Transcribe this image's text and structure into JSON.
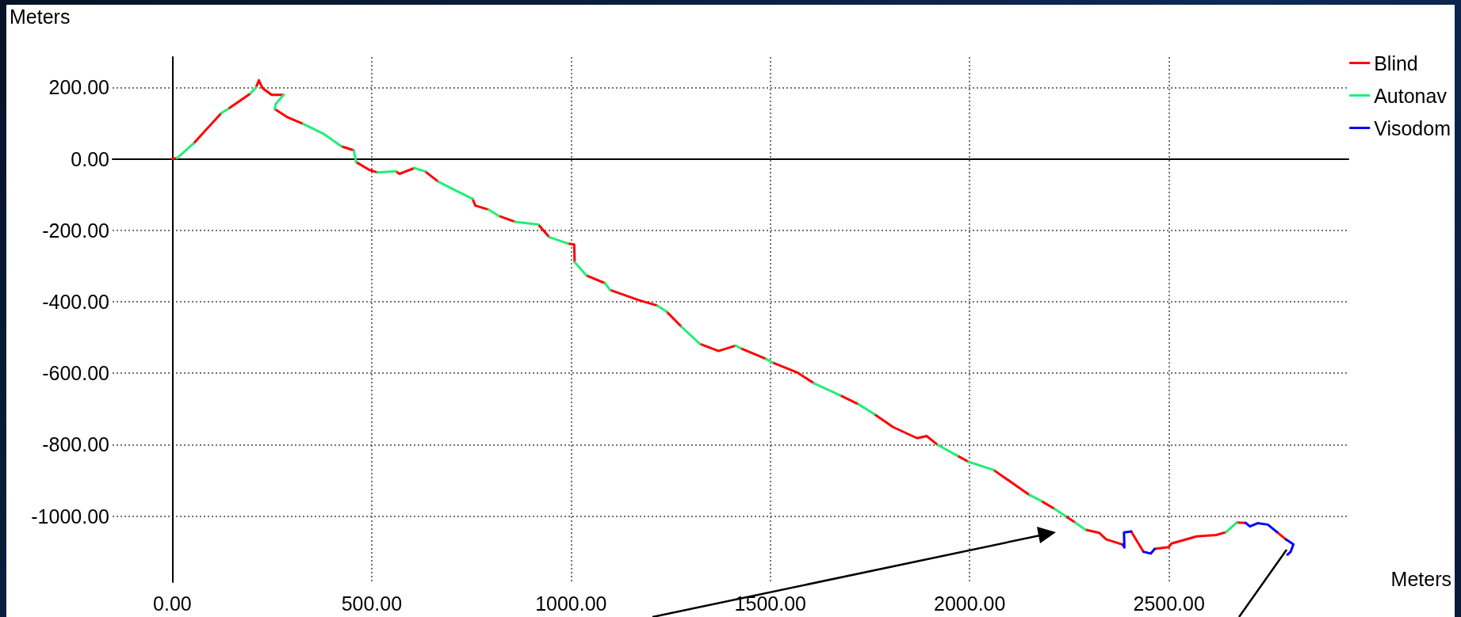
{
  "chart_data": {
    "type": "line",
    "xlabel": "Meters",
    "ylabel": "Meters",
    "xlim": [
      -150,
      2950
    ],
    "ylim": [
      -1185,
      285
    ],
    "xticks": [
      {
        "value": 0,
        "label": "0.00"
      },
      {
        "value": 500,
        "label": "500.00"
      },
      {
        "value": 1000,
        "label": "1000.00"
      },
      {
        "value": 1500,
        "label": "1500.00"
      },
      {
        "value": 2000,
        "label": "2000.00"
      },
      {
        "value": 2500,
        "label": "2500.00"
      }
    ],
    "yticks": [
      {
        "value": -1000,
        "label": "-1000.00"
      },
      {
        "value": -800,
        "label": "-800.00"
      },
      {
        "value": -600,
        "label": "-600.00"
      },
      {
        "value": -400,
        "label": "-400.00"
      },
      {
        "value": -200,
        "label": "-200.00"
      },
      {
        "value": 0,
        "label": "0.00"
      },
      {
        "value": 200,
        "label": "200.00"
      }
    ],
    "grid": true,
    "legend": "top right",
    "marker": "none",
    "line_style": "solid",
    "series": [
      {
        "name": "Blind",
        "color": "#ff0000",
        "x": [
          0,
          12,
          null,
          53,
          123,
          null,
          140,
          196,
          null,
          210,
          217,
          226,
          249,
          279,
          null,
          257,
          288,
          328,
          null,
          424,
          455,
          null,
          461,
          494,
          514,
          null,
          560,
          570,
          607,
          null,
          634,
          667,
          null,
          753,
          760,
          793,
          null,
          819,
          859,
          null,
          918,
          945,
          null,
          992,
          1008,
          1009,
          null,
          1038,
          1085,
          null,
          1098,
          1171,
          1217,
          null,
          1240,
          1277,
          null,
          1323,
          1370,
          1413,
          null,
          1425,
          1489,
          null,
          1505,
          1569,
          1609,
          null,
          1675,
          1721,
          null,
          1761,
          1808,
          1868,
          1892,
          1920,
          null,
          1969,
          1997,
          null,
          2060,
          2150,
          null,
          2180,
          2213,
          null,
          2240,
          2265,
          null,
          2290,
          2325,
          2342,
          2384,
          null,
          2405,
          2436,
          null,
          2464,
          2499,
          2506,
          2569,
          2618,
          2643,
          null,
          2670,
          2692,
          null,
          2771,
          2794
        ],
        "values": [
          0,
          2,
          null,
          43,
          128,
          null,
          140,
          183,
          null,
          200,
          220,
          198,
          179,
          179,
          null,
          139,
          117,
          98,
          null,
          35,
          24,
          null,
          -9,
          -31,
          -38,
          null,
          -35,
          -42,
          -26,
          null,
          -35,
          -64,
          null,
          -112,
          -131,
          -142,
          null,
          -160,
          -176,
          null,
          -184,
          -219,
          null,
          -237,
          -240,
          -289,
          null,
          -326,
          -348,
          null,
          -367,
          -396,
          -411,
          null,
          -428,
          -470,
          null,
          -518,
          -538,
          -523,
          null,
          -530,
          -560,
          null,
          -570,
          -599,
          -628,
          null,
          -662,
          -687,
          null,
          -715,
          -751,
          -782,
          -776,
          -801,
          null,
          -831,
          -848,
          null,
          -871,
          -941,
          null,
          -958,
          -980,
          null,
          -1000,
          -1018,
          null,
          -1038,
          -1047,
          -1065,
          -1080,
          null,
          -1043,
          -1100,
          null,
          -1092,
          -1087,
          -1077,
          -1057,
          -1053,
          -1045,
          null,
          -1018,
          -1019,
          null,
          -1045,
          -1066
        ]
      },
      {
        "name": "Autonav",
        "color": "#22ee77",
        "x": [
          12,
          53,
          null,
          123,
          140,
          null,
          196,
          210,
          null,
          279,
          259,
          257,
          null,
          328,
          381,
          424,
          null,
          455,
          461,
          null,
          514,
          560,
          null,
          607,
          634,
          null,
          667,
          720,
          753,
          null,
          793,
          819,
          null,
          859,
          918,
          null,
          945,
          992,
          null,
          1009,
          1038,
          null,
          1085,
          1098,
          null,
          1217,
          1240,
          null,
          1277,
          1323,
          null,
          1413,
          1425,
          null,
          1489,
          1505,
          null,
          1609,
          1675,
          null,
          1721,
          1761,
          null,
          1920,
          1969,
          null,
          1997,
          2060,
          null,
          2150,
          2180,
          null,
          2213,
          2240,
          null,
          2265,
          2290,
          null,
          2643,
          2670
        ],
        "values": [
          2,
          43,
          null,
          128,
          140,
          null,
          183,
          200,
          null,
          179,
          153,
          139,
          null,
          98,
          69,
          35,
          null,
          24,
          -9,
          null,
          -38,
          -35,
          null,
          -26,
          -35,
          null,
          -64,
          -94,
          -112,
          null,
          -142,
          -160,
          null,
          -176,
          -184,
          null,
          -219,
          -237,
          null,
          -289,
          -326,
          null,
          -348,
          -367,
          null,
          -411,
          -428,
          null,
          -470,
          -518,
          null,
          -523,
          -530,
          null,
          -560,
          -570,
          null,
          -628,
          -662,
          null,
          -687,
          -715,
          null,
          -801,
          -831,
          null,
          -848,
          -871,
          null,
          -941,
          -958,
          null,
          -980,
          -1000,
          null,
          -1018,
          -1038,
          null,
          -1045,
          -1018
        ]
      },
      {
        "name": "Visodom",
        "color": "#0000ff",
        "x": [
          2384,
          2388,
          2387,
          2405,
          null,
          2436,
          2454,
          2464,
          null,
          2692,
          2703,
          2722,
          2748,
          2771,
          null,
          2794,
          2812,
          2805,
          2797
        ],
        "values": [
          -1080,
          -1088,
          -1046,
          -1043,
          null,
          -1100,
          -1105,
          -1092,
          null,
          -1019,
          -1029,
          -1020,
          -1024,
          -1045,
          null,
          -1066,
          -1079,
          -1100,
          -1108
        ]
      }
    ]
  }
}
